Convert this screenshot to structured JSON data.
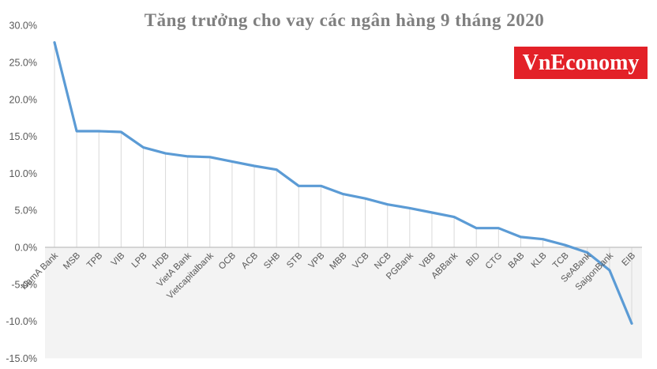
{
  "title": "Tăng trưởng cho vay các ngân hàng 9 tháng 2020",
  "logo": {
    "text": "VnEconomy",
    "bg_color": "#e32128",
    "text_color": "#ffffff"
  },
  "chart_data": {
    "type": "line",
    "title": "Tăng trưởng cho vay các ngân hàng 9 tháng 2020",
    "categories": [
      "NamA Bank",
      "MSB",
      "TPB",
      "VIB",
      "LPB",
      "HDB",
      "VietA Bank",
      "Vietcapitalbank",
      "OCB",
      "ACB",
      "SHB",
      "STB",
      "VPB",
      "MBB",
      "VCB",
      "NCB",
      "PGBank",
      "VBB",
      "ABBank",
      "BID",
      "CTG",
      "BAB",
      "KLB",
      "TCB",
      "SeABank",
      "SaigonBank",
      "EIB"
    ],
    "values": [
      27.7,
      15.7,
      15.7,
      15.6,
      13.5,
      12.7,
      12.3,
      12.2,
      11.6,
      11.0,
      10.5,
      8.3,
      8.3,
      7.2,
      6.6,
      5.8,
      5.3,
      4.7,
      4.1,
      2.6,
      2.6,
      1.4,
      1.1,
      0.3,
      -0.7,
      -3.1,
      -10.3
    ],
    "unit": "%",
    "xlabel": "",
    "ylabel": "",
    "ylim": [
      -15,
      30
    ],
    "y_ticks": [
      30,
      25,
      20,
      15,
      10,
      5,
      0,
      -5,
      -10,
      -15
    ],
    "y_tick_labels": [
      "30.0%",
      "25.0%",
      "20.0%",
      "15.0%",
      "10.0%",
      "5.0%",
      "0.0%",
      "-5.0%",
      "-10.0%",
      "-15.0%"
    ],
    "legend": "none",
    "grid": "drop-lines"
  },
  "colors": {
    "line": "#5b9bd5",
    "axis_line": "#bfbfbf",
    "drop_line": "#d9d9d9",
    "tick_text": "#595959",
    "title_text": "#7f7f7f",
    "negative_area_fill": "#f3f3f3"
  }
}
